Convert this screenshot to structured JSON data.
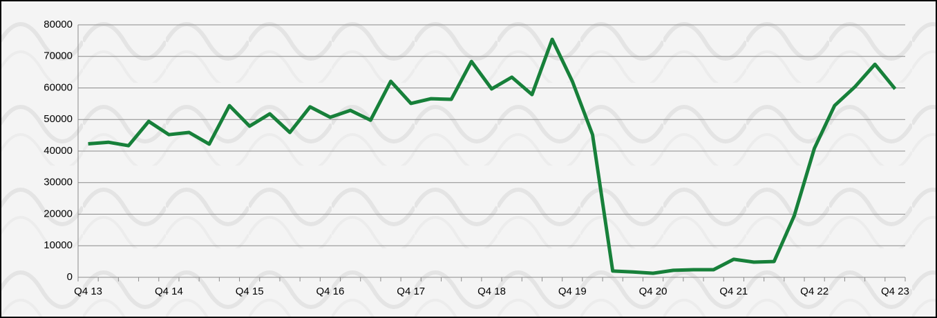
{
  "chart_data": {
    "type": "line",
    "categories": [
      "Q4 13",
      null,
      null,
      null,
      "Q4 14",
      null,
      null,
      null,
      "Q4 15",
      null,
      null,
      null,
      "Q4 16",
      null,
      null,
      null,
      "Q4 17",
      null,
      null,
      null,
      "Q4 18",
      null,
      null,
      null,
      "Q4 19",
      null,
      null,
      null,
      "Q4 20",
      null,
      null,
      null,
      "Q4 21",
      null,
      null,
      null,
      "Q4 22",
      null,
      null,
      null,
      "Q4 23"
    ],
    "series": [
      {
        "color": "#17803a",
        "values": [
          42300,
          42800,
          41700,
          49400,
          45200,
          45900,
          42200,
          54400,
          47900,
          51800,
          45900,
          54000,
          50700,
          52900,
          49800,
          62100,
          55100,
          56600,
          56400,
          68400,
          59700,
          63400,
          57900,
          75400,
          62100,
          45200,
          2000,
          1700,
          1300,
          2200,
          2400,
          2400,
          5700,
          4800,
          5000,
          19500,
          40900,
          54400,
          60300,
          67500,
          59700
        ]
      }
    ],
    "ylim": [
      0,
      80000
    ],
    "yticks": [
      0,
      10000,
      20000,
      30000,
      40000,
      50000,
      60000,
      70000,
      80000
    ],
    "grid": true
  }
}
